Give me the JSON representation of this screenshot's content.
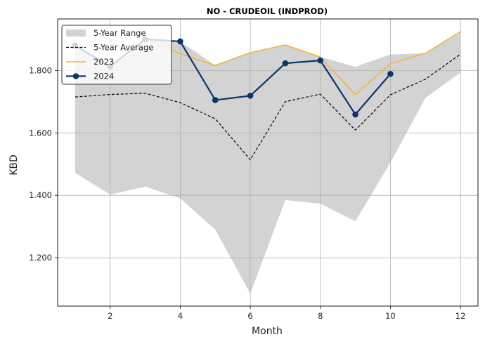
{
  "chart_data": {
    "type": "line",
    "title": "NO - CRUDEOIL (INDPROD)",
    "xlabel": "Month",
    "ylabel": "KBD",
    "xlim": [
      0.5,
      12.5
    ],
    "ylim": [
      1045,
      1965
    ],
    "x_ticks": [
      2,
      4,
      6,
      8,
      10,
      12
    ],
    "y_ticks": [
      1200,
      1400,
      1600,
      1800
    ],
    "y_tick_labels": [
      "1.200",
      "1.400",
      "1.600",
      "1.800"
    ],
    "grid": true,
    "legend_position": "top-left",
    "range": {
      "name": "5-Year Range",
      "color": "#d3d3d3",
      "x": [
        1,
        2,
        3,
        4,
        5,
        6,
        7,
        8,
        9,
        10,
        11,
        12
      ],
      "min": [
        1472,
        1402,
        1428,
        1390,
        1290,
        1085,
        1385,
        1373,
        1317,
        1505,
        1712,
        1793
      ],
      "max": [
        1878,
        1813,
        1900,
        1893,
        1816,
        1857,
        1882,
        1843,
        1812,
        1851,
        1855,
        1922
      ]
    },
    "series": [
      {
        "name": "5-Year Average",
        "color": "#000000",
        "style": "dashed",
        "x": [
          1,
          2,
          3,
          4,
          5,
          6,
          7,
          8,
          9,
          10,
          11,
          12
        ],
        "values": [
          1715,
          1723,
          1727,
          1697,
          1645,
          1514,
          1700,
          1724,
          1609,
          1722,
          1772,
          1852
        ]
      },
      {
        "name": "2023",
        "color": "#f2b13a",
        "style": "solid",
        "x": [
          1,
          2,
          3,
          4,
          5,
          6,
          7,
          8,
          9,
          10,
          11,
          12
        ],
        "values": [
          1878,
          1813,
          1900,
          1854,
          1816,
          1857,
          1882,
          1843,
          1722,
          1822,
          1855,
          1925
        ]
      },
      {
        "name": "2024",
        "color": "#0b3566",
        "style": "solid-marker",
        "x": [
          1,
          2,
          3,
          4,
          5,
          6,
          7,
          8,
          9,
          10
        ],
        "values": [
          1880,
          1813,
          1900,
          1893,
          1705,
          1719,
          1823,
          1832,
          1659,
          1789
        ]
      }
    ]
  }
}
